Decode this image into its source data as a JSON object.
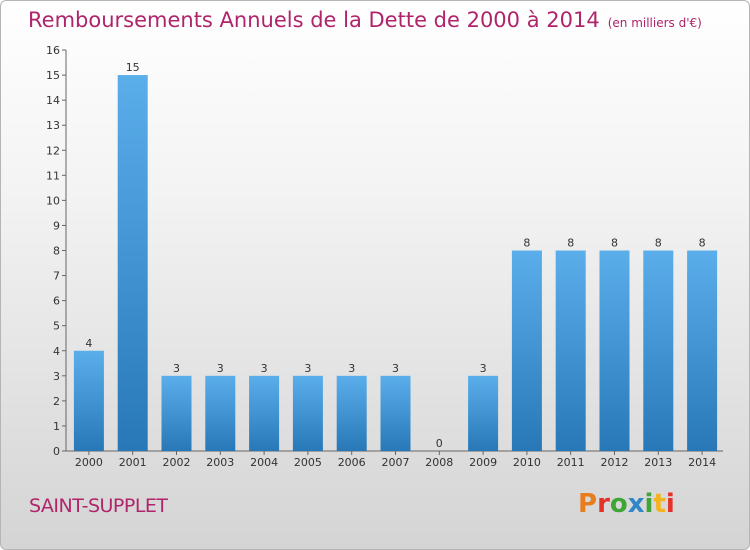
{
  "title": "Remboursements Annuels de la Dette de 2000 à 2014",
  "unit_note": "(en milliers d'€)",
  "place_name": "SAINT-SUPPLET",
  "brand": {
    "logo_letters": [
      "P",
      "r",
      "o",
      "x",
      "i",
      "t",
      "i"
    ]
  },
  "colors": {
    "title": "#b0246b",
    "bar_light": "#5aaeea",
    "bar_dark": "#2878b8"
  },
  "chart_data": {
    "type": "bar",
    "categories": [
      "2000",
      "2001",
      "2002",
      "2003",
      "2004",
      "2005",
      "2006",
      "2007",
      "2008",
      "2009",
      "2010",
      "2011",
      "2012",
      "2013",
      "2014"
    ],
    "values": [
      4,
      15,
      3,
      3,
      3,
      3,
      3,
      3,
      0,
      3,
      8,
      8,
      8,
      8,
      8
    ],
    "data_labels": [
      "4",
      "15",
      "3",
      "3",
      "3",
      "3",
      "3",
      "3",
      "0",
      "3",
      "8",
      "8",
      "8",
      "8",
      "8"
    ],
    "y_ticks": [
      "0",
      "1",
      "2",
      "3",
      "4",
      "5",
      "6",
      "7",
      "8",
      "9",
      "10",
      "11",
      "12",
      "13",
      "14",
      "15",
      "16"
    ],
    "ylim": [
      0,
      16
    ],
    "grid": false
  }
}
